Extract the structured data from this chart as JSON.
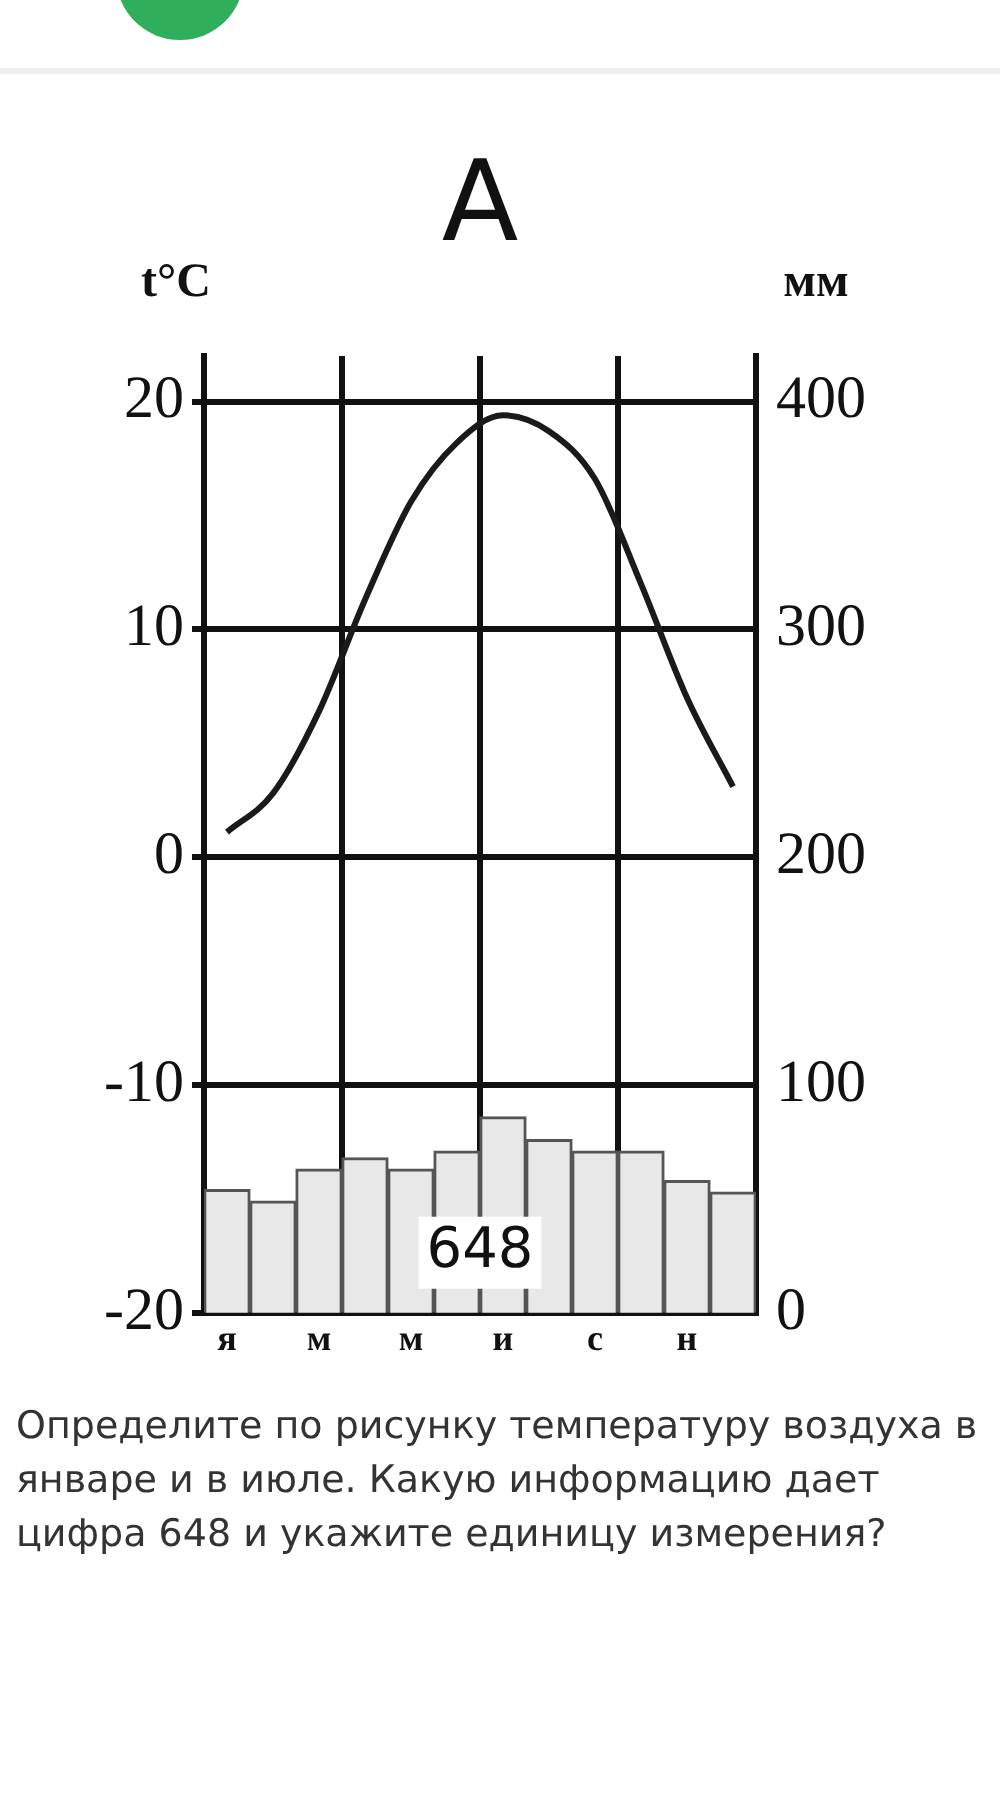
{
  "chart_data": {
    "type": "bar",
    "title": "A",
    "ylabel": "t°C",
    "y2label": "мм",
    "categories": [
      "я",
      null,
      "м",
      null,
      "м",
      null,
      "и",
      null,
      "с",
      null,
      "н",
      null
    ],
    "series": [
      {
        "axis": "y2",
        "color": "#e8e8e8",
        "values": [
          54,
          49,
          63,
          68,
          63,
          71,
          86,
          76,
          71,
          71,
          58,
          53
        ]
      },
      {
        "type": "line",
        "color": "#1a1a1a",
        "values": [
          1.1,
          2.8,
          6.4,
          11.3,
          15.6,
          18.2,
          19.4,
          18.7,
          16.6,
          12.0,
          7.0,
          3.1
        ]
      }
    ],
    "ylim": [
      -20,
      22
    ],
    "yticks": [
      -20,
      -10,
      0,
      10,
      20
    ],
    "y2lim": [
      0,
      420
    ],
    "y2ticks": [
      0,
      100,
      200,
      300,
      400
    ],
    "grid": true,
    "marker": "none",
    "line_style": "solid",
    "legend": false,
    "annotations": [
      "648",
      "Определите по рисунку температуру воздуха в январе и в июле. Какую информацию дает цифра 648 и укажите единицу измерения?"
    ]
  }
}
